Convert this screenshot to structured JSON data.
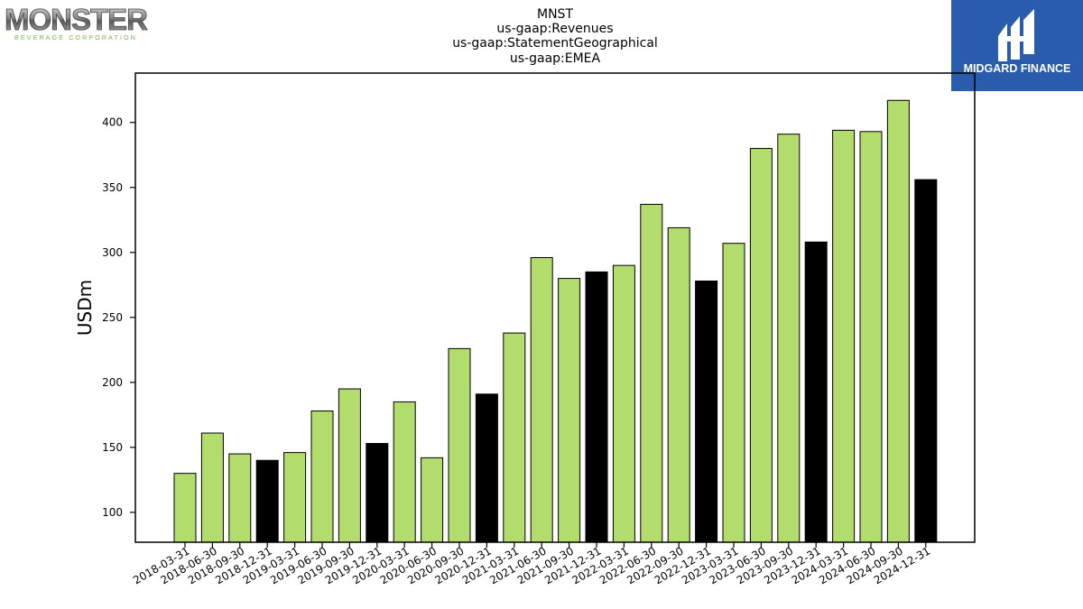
{
  "logos": {
    "left": {
      "word": "MONSTER",
      "sub": "BEVERAGE CORPORATION"
    },
    "right": {
      "word": "MIDGARD FINANCE"
    }
  },
  "colors": {
    "bar_quarter": "#b2dd6c",
    "bar_year_end": "#000000",
    "axis": "#000000",
    "logo_right_bg": "#2a5cad"
  },
  "chart_data": {
    "type": "bar",
    "title": [
      "MNST",
      "us-gaap:Revenues",
      "us-gaap:StatementGeographical",
      "us-gaap:EMEA"
    ],
    "ylabel": "USDm",
    "xlabel": "",
    "ylim": [
      77,
      438
    ],
    "yticks": [
      100,
      150,
      200,
      250,
      300,
      350,
      400
    ],
    "grid": false,
    "categories": [
      "2018-03-31",
      "2018-06-30",
      "2018-09-30",
      "2018-12-31",
      "2019-03-31",
      "2019-06-30",
      "2019-09-30",
      "2019-12-31",
      "2020-03-31",
      "2020-06-30",
      "2020-09-30",
      "2020-12-31",
      "2021-03-31",
      "2021-06-30",
      "2021-09-30",
      "2021-12-31",
      "2022-03-31",
      "2022-06-30",
      "2022-09-30",
      "2022-12-31",
      "2023-03-31",
      "2023-06-30",
      "2023-09-30",
      "2023-12-31",
      "2024-03-31",
      "2024-06-30",
      "2024-09-30",
      "2024-12-31"
    ],
    "values": [
      130,
      161,
      145,
      140,
      146,
      178,
      195,
      153,
      185,
      142,
      226,
      191,
      238,
      296,
      280,
      285,
      290,
      337,
      319,
      278,
      307,
      380,
      391,
      308,
      394,
      393,
      417,
      356
    ]
  }
}
